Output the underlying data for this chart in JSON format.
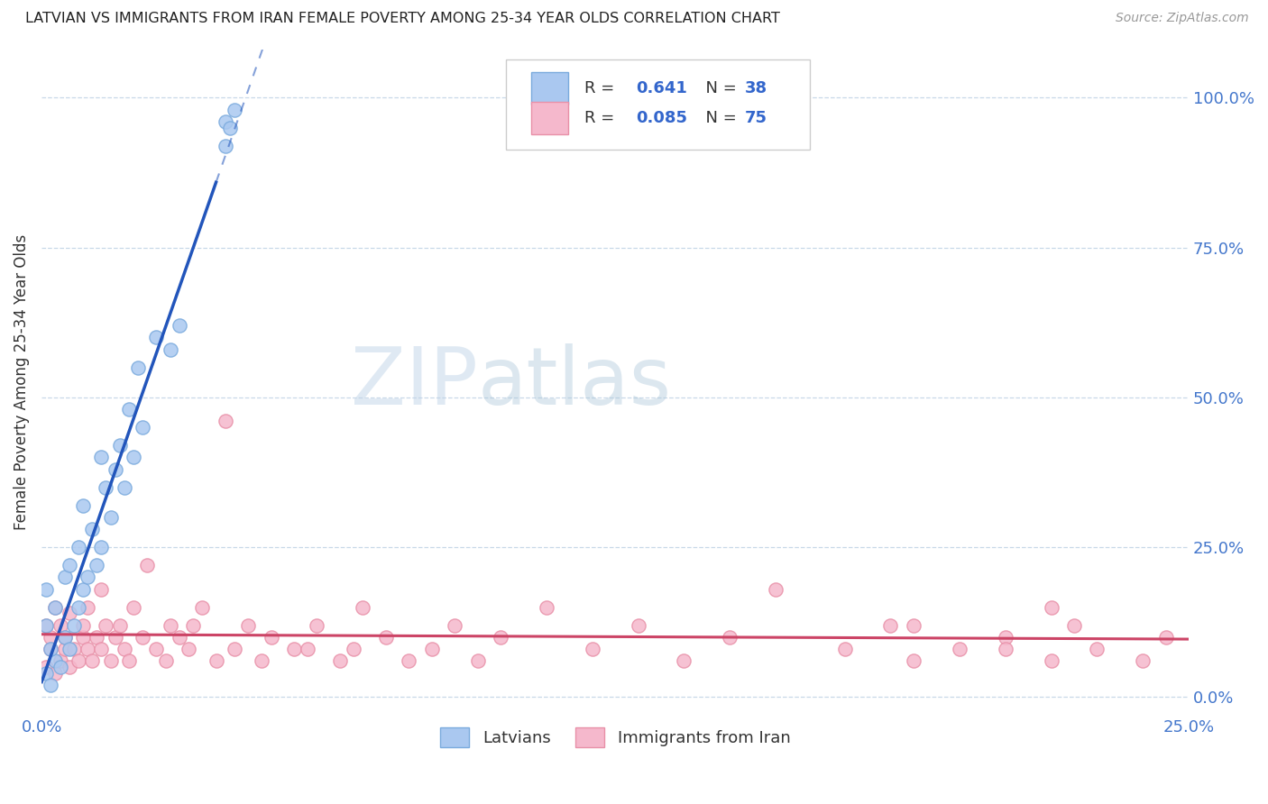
{
  "title": "LATVIAN VS IMMIGRANTS FROM IRAN FEMALE POVERTY AMONG 25-34 YEAR OLDS CORRELATION CHART",
  "source": "Source: ZipAtlas.com",
  "ylabel": "Female Poverty Among 25-34 Year Olds",
  "xmin": 0.0,
  "xmax": 0.25,
  "ymin": -0.03,
  "ymax": 1.08,
  "ytick_vals": [
    0.0,
    0.25,
    0.5,
    0.75,
    1.0
  ],
  "ytick_labels": [
    "0.0%",
    "25.0%",
    "50.0%",
    "75.0%",
    "100.0%"
  ],
  "xtick_vals": [
    0.0,
    0.05,
    0.1,
    0.15,
    0.2,
    0.25
  ],
  "xtick_labels": [
    "0.0%",
    "",
    "",
    "",
    "",
    "25.0%"
  ],
  "latvians_color": "#aac8f0",
  "latvians_edge_color": "#7aaadd",
  "iran_color": "#f5b8cc",
  "iran_edge_color": "#e890a8",
  "regression_latvians_color": "#2255bb",
  "regression_iran_color": "#cc4466",
  "R_latvians": 0.641,
  "N_latvians": 38,
  "R_iran": 0.085,
  "N_iran": 75,
  "watermark_zip": "ZIP",
  "watermark_atlas": "atlas",
  "legend_R1": "R = ",
  "legend_V1": "0.641",
  "legend_N1": "N = 38",
  "legend_R2": "R = ",
  "legend_V2": "0.085",
  "legend_N2": "N = 75",
  "latvians_label": "Latvians",
  "iran_label": "Immigrants from Iran",
  "lat_x": [
    0.001,
    0.002,
    0.003,
    0.001,
    0.002,
    0.001,
    0.004,
    0.003,
    0.005,
    0.006,
    0.005,
    0.007,
    0.008,
    0.006,
    0.009,
    0.008,
    0.01,
    0.012,
    0.011,
    0.013,
    0.009,
    0.015,
    0.014,
    0.013,
    0.016,
    0.018,
    0.017,
    0.02,
    0.019,
    0.022,
    0.021,
    0.025,
    0.03,
    0.028,
    0.04,
    0.042,
    0.041,
    0.04
  ],
  "lat_y": [
    0.04,
    0.02,
    0.06,
    0.12,
    0.08,
    0.18,
    0.05,
    0.15,
    0.1,
    0.08,
    0.2,
    0.12,
    0.15,
    0.22,
    0.18,
    0.25,
    0.2,
    0.22,
    0.28,
    0.25,
    0.32,
    0.3,
    0.35,
    0.4,
    0.38,
    0.35,
    0.42,
    0.4,
    0.48,
    0.45,
    0.55,
    0.6,
    0.62,
    0.58,
    0.96,
    0.98,
    0.95,
    0.92
  ],
  "iran_x": [
    0.001,
    0.002,
    0.001,
    0.003,
    0.002,
    0.004,
    0.003,
    0.005,
    0.004,
    0.006,
    0.005,
    0.007,
    0.008,
    0.006,
    0.009,
    0.01,
    0.009,
    0.011,
    0.012,
    0.01,
    0.013,
    0.014,
    0.015,
    0.013,
    0.016,
    0.018,
    0.017,
    0.02,
    0.019,
    0.022,
    0.025,
    0.023,
    0.028,
    0.027,
    0.03,
    0.032,
    0.035,
    0.033,
    0.038,
    0.04,
    0.042,
    0.045,
    0.05,
    0.048,
    0.055,
    0.06,
    0.058,
    0.065,
    0.07,
    0.068,
    0.075,
    0.08,
    0.085,
    0.09,
    0.095,
    0.1,
    0.11,
    0.12,
    0.13,
    0.14,
    0.15,
    0.16,
    0.175,
    0.185,
    0.19,
    0.2,
    0.21,
    0.22,
    0.225,
    0.23,
    0.24,
    0.245,
    0.22,
    0.21,
    0.19
  ],
  "iran_y": [
    0.05,
    0.08,
    0.12,
    0.04,
    0.1,
    0.06,
    0.15,
    0.08,
    0.12,
    0.05,
    0.1,
    0.08,
    0.06,
    0.14,
    0.1,
    0.08,
    0.12,
    0.06,
    0.1,
    0.15,
    0.08,
    0.12,
    0.06,
    0.18,
    0.1,
    0.08,
    0.12,
    0.15,
    0.06,
    0.1,
    0.08,
    0.22,
    0.12,
    0.06,
    0.1,
    0.08,
    0.15,
    0.12,
    0.06,
    0.46,
    0.08,
    0.12,
    0.1,
    0.06,
    0.08,
    0.12,
    0.08,
    0.06,
    0.15,
    0.08,
    0.1,
    0.06,
    0.08,
    0.12,
    0.06,
    0.1,
    0.15,
    0.08,
    0.12,
    0.06,
    0.1,
    0.18,
    0.08,
    0.12,
    0.06,
    0.08,
    0.1,
    0.06,
    0.12,
    0.08,
    0.06,
    0.1,
    0.15,
    0.08,
    0.12
  ]
}
